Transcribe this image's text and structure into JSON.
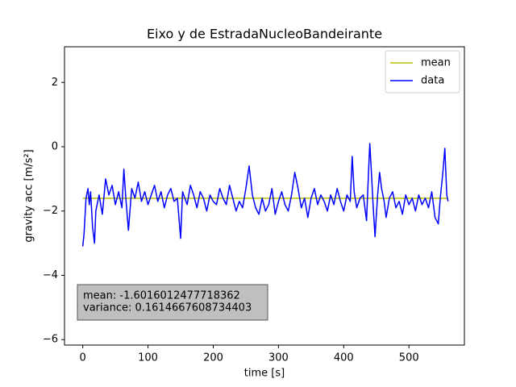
{
  "chart_data": {
    "type": "line",
    "title": "Eixo y de EstradaNucleoBandeirante",
    "xlabel": "time [s]",
    "ylabel": "gravity acc [m/s²]",
    "xlim": [
      -28,
      585
    ],
    "ylim": [
      -6.17,
      3.11
    ],
    "xticks": [
      0,
      100,
      200,
      300,
      400,
      500
    ],
    "yticks": [
      {
        "value": -6,
        "label": "−6"
      },
      {
        "value": -4,
        "label": "−4"
      },
      {
        "value": -2,
        "label": "−2"
      },
      0,
      2
    ],
    "grid": false,
    "legend": "upper right",
    "annotation": [
      "mean: -1.6016012477718362",
      "variance: 0.1614667608734403"
    ],
    "series": [
      {
        "name": "mean",
        "color": "#bfbf00",
        "x": [
          0,
          560
        ],
        "values": [
          -1.6016012477718362,
          -1.6016012477718362
        ]
      },
      {
        "name": "data",
        "color": "#0000ff",
        "x": [
          0,
          2,
          5,
          8,
          10,
          12,
          15,
          18,
          20,
          25,
          30,
          35,
          40,
          45,
          50,
          55,
          60,
          63,
          66,
          70,
          75,
          80,
          85,
          90,
          95,
          100,
          105,
          110,
          115,
          120,
          125,
          130,
          135,
          140,
          145,
          150,
          153,
          160,
          165,
          170,
          175,
          180,
          185,
          190,
          195,
          200,
          205,
          210,
          215,
          220,
          225,
          230,
          235,
          240,
          245,
          250,
          255,
          260,
          265,
          270,
          275,
          280,
          285,
          290,
          295,
          300,
          305,
          310,
          315,
          320,
          325,
          330,
          335,
          340,
          345,
          350,
          355,
          360,
          365,
          370,
          375,
          380,
          385,
          390,
          395,
          400,
          405,
          410,
          413,
          416,
          420,
          425,
          430,
          435,
          438,
          440,
          443,
          445,
          448,
          452,
          455,
          458,
          462,
          465,
          470,
          475,
          480,
          485,
          490,
          495,
          500,
          505,
          510,
          515,
          520,
          525,
          530,
          535,
          540,
          545,
          548,
          552,
          555,
          558,
          560
        ],
        "values": [
          -3.1,
          -2.7,
          -1.6,
          -1.3,
          -1.8,
          -1.4,
          -2.5,
          -3.0,
          -2.0,
          -1.5,
          -2.1,
          -1.0,
          -1.5,
          -1.2,
          -1.8,
          -1.4,
          -1.9,
          -0.7,
          -1.6,
          -2.6,
          -1.3,
          -1.6,
          -1.1,
          -1.7,
          -1.4,
          -1.8,
          -1.5,
          -1.2,
          -1.7,
          -1.4,
          -1.9,
          -1.5,
          -1.3,
          -1.7,
          -1.6,
          -2.85,
          -1.4,
          -1.8,
          -1.2,
          -1.5,
          -1.9,
          -1.4,
          -1.6,
          -2.0,
          -1.5,
          -1.7,
          -1.8,
          -1.3,
          -1.6,
          -1.8,
          -1.2,
          -1.6,
          -2.0,
          -1.7,
          -1.9,
          -1.3,
          -0.6,
          -1.5,
          -1.9,
          -2.1,
          -1.6,
          -2.0,
          -1.8,
          -1.3,
          -2.1,
          -1.7,
          -1.4,
          -1.8,
          -2.0,
          -1.5,
          -0.8,
          -1.3,
          -1.9,
          -1.6,
          -2.2,
          -1.6,
          -1.3,
          -1.8,
          -1.5,
          -1.7,
          -2.0,
          -1.5,
          -1.8,
          -1.3,
          -1.7,
          -2.0,
          -1.5,
          -1.7,
          -0.3,
          -1.4,
          -1.9,
          -1.6,
          -1.5,
          -2.3,
          -0.8,
          0.1,
          -1.0,
          -1.8,
          -2.8,
          -1.5,
          -0.8,
          -1.3,
          -1.7,
          -2.2,
          -1.6,
          -1.4,
          -1.9,
          -1.7,
          -2.1,
          -1.5,
          -1.8,
          -1.6,
          -2.0,
          -1.5,
          -1.8,
          -1.6,
          -1.9,
          -1.4,
          -2.2,
          -2.4,
          -1.6,
          -0.8,
          -0.05,
          -1.5,
          -1.7
        ]
      }
    ]
  }
}
